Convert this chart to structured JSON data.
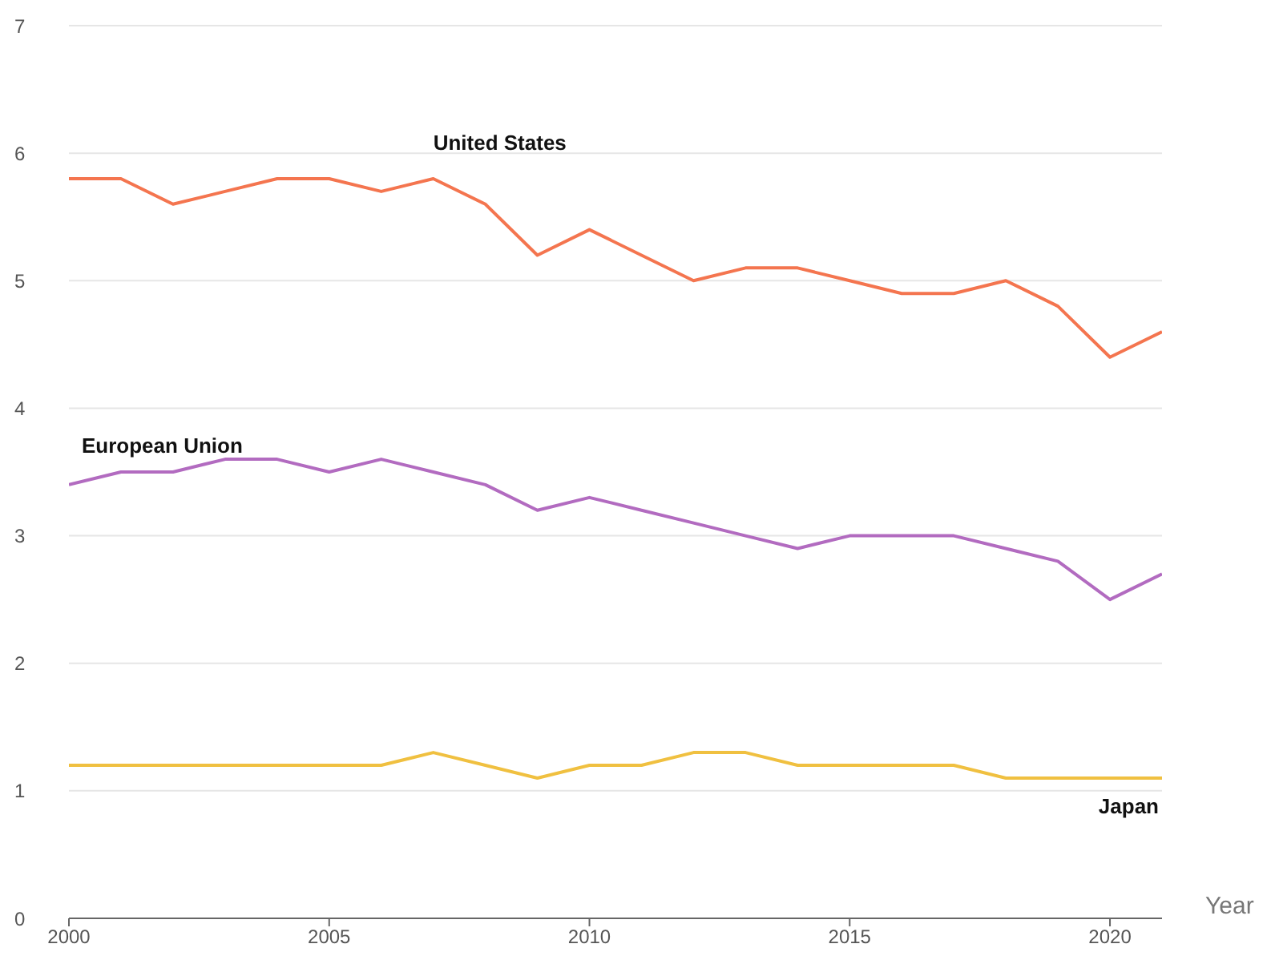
{
  "chart_data": {
    "type": "line",
    "xlabel": "Year",
    "x": [
      2000,
      2001,
      2002,
      2003,
      2004,
      2005,
      2006,
      2007,
      2008,
      2009,
      2010,
      2011,
      2012,
      2013,
      2014,
      2015,
      2016,
      2017,
      2018,
      2019,
      2020,
      2021
    ],
    "series": [
      {
        "name": "United States",
        "color": "#f4754f",
        "values": [
          5.8,
          5.8,
          5.6,
          5.7,
          5.8,
          5.8,
          5.7,
          5.8,
          5.6,
          5.2,
          5.4,
          5.2,
          5.0,
          5.1,
          5.1,
          5.0,
          4.9,
          4.9,
          5.0,
          4.8,
          4.4,
          4.6
        ]
      },
      {
        "name": "European Union",
        "color": "#b26bc0",
        "values": [
          3.4,
          3.5,
          3.5,
          3.6,
          3.6,
          3.5,
          3.6,
          3.5,
          3.4,
          3.2,
          3.3,
          3.2,
          3.1,
          3.0,
          2.9,
          3.0,
          3.0,
          3.0,
          2.9,
          2.8,
          2.5,
          2.7
        ]
      },
      {
        "name": "Japan",
        "color": "#f0c040",
        "values": [
          1.2,
          1.2,
          1.2,
          1.2,
          1.2,
          1.2,
          1.2,
          1.3,
          1.2,
          1.1,
          1.2,
          1.2,
          1.3,
          1.3,
          1.2,
          1.2,
          1.2,
          1.2,
          1.1,
          1.1,
          1.1,
          1.1
        ]
      }
    ],
    "xlim": [
      2000,
      2021
    ],
    "xticks": [
      2000,
      2005,
      2010,
      2015,
      2020
    ],
    "ylim": [
      0,
      7
    ],
    "yticks": [
      0,
      1,
      2,
      3,
      4,
      5,
      6,
      7
    ],
    "grid": "y",
    "legend": false,
    "marker": "none",
    "line_style": "solid"
  }
}
